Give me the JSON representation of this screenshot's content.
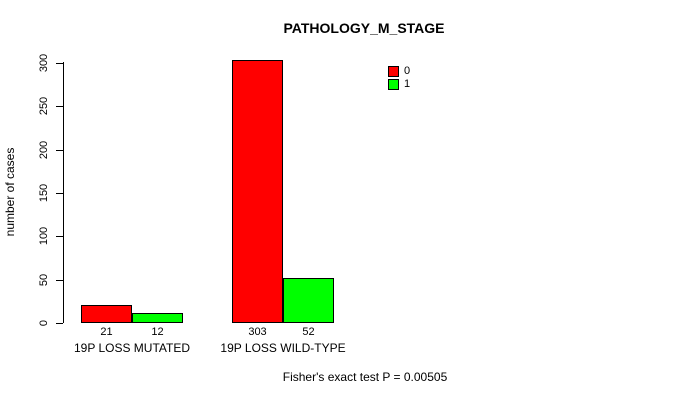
{
  "chart_data": {
    "type": "bar",
    "title": "PATHOLOGY_M_STAGE",
    "ylabel": "number of cases",
    "xlabel": "",
    "categories": [
      "19P LOSS MUTATED",
      "19P LOSS WILD-TYPE"
    ],
    "series": [
      {
        "name": "0",
        "color": "#FF0000",
        "values": [
          21,
          303
        ]
      },
      {
        "name": "1",
        "color": "#00FF00",
        "values": [
          12,
          52
        ]
      }
    ],
    "value_labels": [
      [
        "21",
        "12"
      ],
      [
        "303",
        "52"
      ]
    ],
    "ylim": [
      0,
      300
    ],
    "yticks": [
      0,
      50,
      100,
      150,
      200,
      250,
      300
    ],
    "grid": false,
    "legend_position": "top-right",
    "footer": "Fisher's exact test P = 0.00505"
  },
  "colors": {
    "background": "#FFFFFF",
    "axis": "#000000",
    "bar_border": "#000000",
    "series_0": "#FF0000",
    "series_1": "#00FF00"
  }
}
